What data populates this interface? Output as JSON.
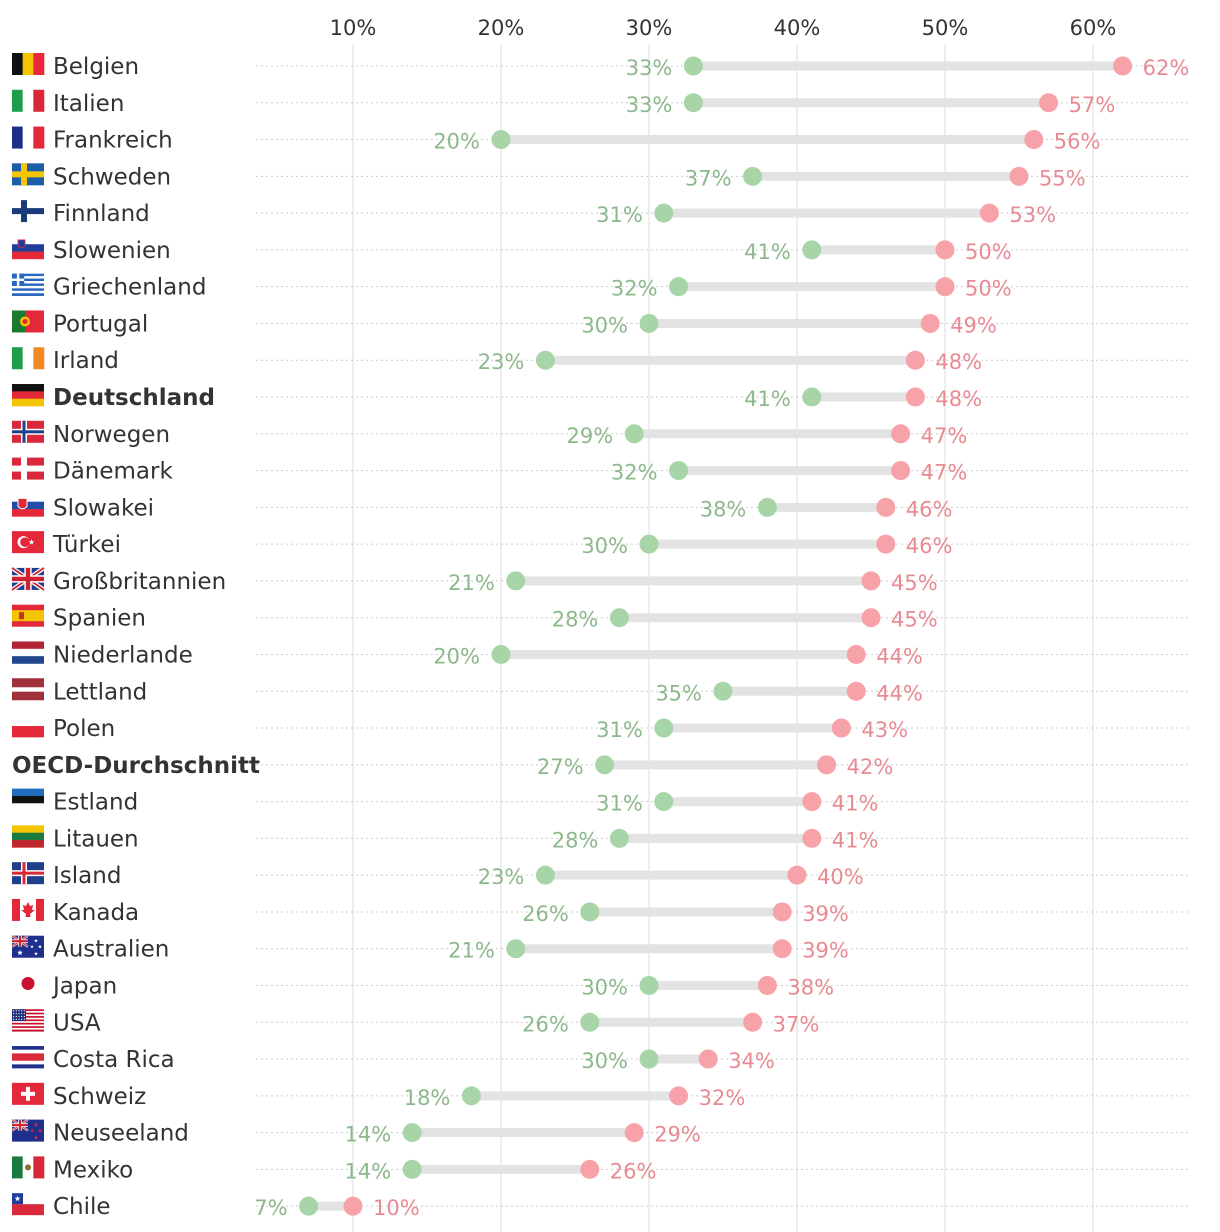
{
  "colors": {
    "low": "#a8d5a8",
    "low_text": "#8cb88c",
    "high": "#f7a1a8",
    "high_text": "#e88a92",
    "bar": "#e3e3e3",
    "grid": "#dcdcdc",
    "dots": "#cccccc"
  },
  "chart_data": {
    "type": "dumbbell",
    "title": "",
    "xlabel": "",
    "ylabel": "",
    "x_ticks": [
      "10%",
      "20%",
      "30%",
      "40%",
      "50%",
      "60%"
    ],
    "x_tick_values": [
      10,
      20,
      30,
      40,
      50,
      60
    ],
    "xlim": [
      3.2,
      66.0
    ],
    "series_names": [
      "low",
      "high"
    ],
    "rows": [
      {
        "country": "Belgien",
        "low": 33,
        "high": 62,
        "low_label": "33%",
        "high_label": "62%",
        "bold": false,
        "flag": "belgium-flag-icon"
      },
      {
        "country": "Italien",
        "low": 33,
        "high": 57,
        "low_label": "33%",
        "high_label": "57%",
        "bold": false,
        "flag": "italy-flag-icon"
      },
      {
        "country": "Frankreich",
        "low": 20,
        "high": 56,
        "low_label": "20%",
        "high_label": "56%",
        "bold": false,
        "flag": "france-flag-icon"
      },
      {
        "country": "Schweden",
        "low": 37,
        "high": 55,
        "low_label": "37%",
        "high_label": "55%",
        "bold": false,
        "flag": "sweden-flag-icon"
      },
      {
        "country": "Finnland",
        "low": 31,
        "high": 53,
        "low_label": "31%",
        "high_label": "53%",
        "bold": false,
        "flag": "finland-flag-icon"
      },
      {
        "country": "Slowenien",
        "low": 41,
        "high": 50,
        "low_label": "41%",
        "high_label": "50%",
        "bold": false,
        "flag": "slovenia-flag-icon"
      },
      {
        "country": "Griechenland",
        "low": 32,
        "high": 50,
        "low_label": "32%",
        "high_label": "50%",
        "bold": false,
        "flag": "greece-flag-icon"
      },
      {
        "country": "Portugal",
        "low": 30,
        "high": 49,
        "low_label": "30%",
        "high_label": "49%",
        "bold": false,
        "flag": "portugal-flag-icon"
      },
      {
        "country": "Irland",
        "low": 23,
        "high": 48,
        "low_label": "23%",
        "high_label": "48%",
        "bold": false,
        "flag": "ireland-flag-icon"
      },
      {
        "country": "Deutschland",
        "low": 41,
        "high": 48,
        "low_label": "41%",
        "high_label": "48%",
        "bold": true,
        "flag": "germany-flag-icon"
      },
      {
        "country": "Norwegen",
        "low": 29,
        "high": 47,
        "low_label": "29%",
        "high_label": "47%",
        "bold": false,
        "flag": "norway-flag-icon"
      },
      {
        "country": "Dänemark",
        "low": 32,
        "high": 47,
        "low_label": "32%",
        "high_label": "47%",
        "bold": false,
        "flag": "denmark-flag-icon"
      },
      {
        "country": "Slowakei",
        "low": 38,
        "high": 46,
        "low_label": "38%",
        "high_label": "46%",
        "bold": false,
        "flag": "slovakia-flag-icon"
      },
      {
        "country": "Türkei",
        "low": 30,
        "high": 46,
        "low_label": "30%",
        "high_label": "46%",
        "bold": false,
        "flag": "turkey-flag-icon"
      },
      {
        "country": "Großbritannien",
        "low": 21,
        "high": 45,
        "low_label": "21%",
        "high_label": "45%",
        "bold": false,
        "flag": "uk-flag-icon"
      },
      {
        "country": "Spanien",
        "low": 28,
        "high": 45,
        "low_label": "28%",
        "high_label": "45%",
        "bold": false,
        "flag": "spain-flag-icon"
      },
      {
        "country": "Niederlande",
        "low": 20,
        "high": 44,
        "low_label": "20%",
        "high_label": "44%",
        "bold": false,
        "flag": "netherlands-flag-icon"
      },
      {
        "country": "Lettland",
        "low": 35,
        "high": 44,
        "low_label": "35%",
        "high_label": "44%",
        "bold": false,
        "flag": "latvia-flag-icon"
      },
      {
        "country": "Polen",
        "low": 31,
        "high": 43,
        "low_label": "31%",
        "high_label": "43%",
        "bold": false,
        "flag": "poland-flag-icon"
      },
      {
        "country": "OECD-Durchschnitt",
        "low": 27,
        "high": 42,
        "low_label": "27%",
        "high_label": "42%",
        "bold": true,
        "flag": ""
      },
      {
        "country": "Estland",
        "low": 31,
        "high": 41,
        "low_label": "31%",
        "high_label": "41%",
        "bold": false,
        "flag": "estonia-flag-icon"
      },
      {
        "country": "Litauen",
        "low": 28,
        "high": 41,
        "low_label": "28%",
        "high_label": "41%",
        "bold": false,
        "flag": "lithuania-flag-icon"
      },
      {
        "country": "Island",
        "low": 23,
        "high": 40,
        "low_label": "23%",
        "high_label": "40%",
        "bold": false,
        "flag": "iceland-flag-icon"
      },
      {
        "country": "Kanada",
        "low": 26,
        "high": 39,
        "low_label": "26%",
        "high_label": "39%",
        "bold": false,
        "flag": "canada-flag-icon"
      },
      {
        "country": "Australien",
        "low": 21,
        "high": 39,
        "low_label": "21%",
        "high_label": "39%",
        "bold": false,
        "flag": "australia-flag-icon"
      },
      {
        "country": "Japan",
        "low": 30,
        "high": 38,
        "low_label": "30%",
        "high_label": "38%",
        "bold": false,
        "flag": "japan-flag-icon"
      },
      {
        "country": "USA",
        "low": 26,
        "high": 37,
        "low_label": "26%",
        "high_label": "37%",
        "bold": false,
        "flag": "usa-flag-icon"
      },
      {
        "country": "Costa Rica",
        "low": 30,
        "high": 34,
        "low_label": "30%",
        "high_label": "34%",
        "bold": false,
        "flag": "costa-rica-flag-icon"
      },
      {
        "country": "Schweiz",
        "low": 18,
        "high": 32,
        "low_label": "18%",
        "high_label": "32%",
        "bold": false,
        "flag": "switzerland-flag-icon"
      },
      {
        "country": "Neuseeland",
        "low": 14,
        "high": 29,
        "low_label": "14%",
        "high_label": "29%",
        "bold": false,
        "flag": "new-zealand-flag-icon"
      },
      {
        "country": "Mexiko",
        "low": 14,
        "high": 26,
        "low_label": "14%",
        "high_label": "26%",
        "bold": false,
        "flag": "mexico-flag-icon"
      },
      {
        "country": "Chile",
        "low": 7,
        "high": 10,
        "low_label": "7%",
        "high_label": "10%",
        "bold": false,
        "flag": "chile-flag-icon"
      }
    ]
  }
}
